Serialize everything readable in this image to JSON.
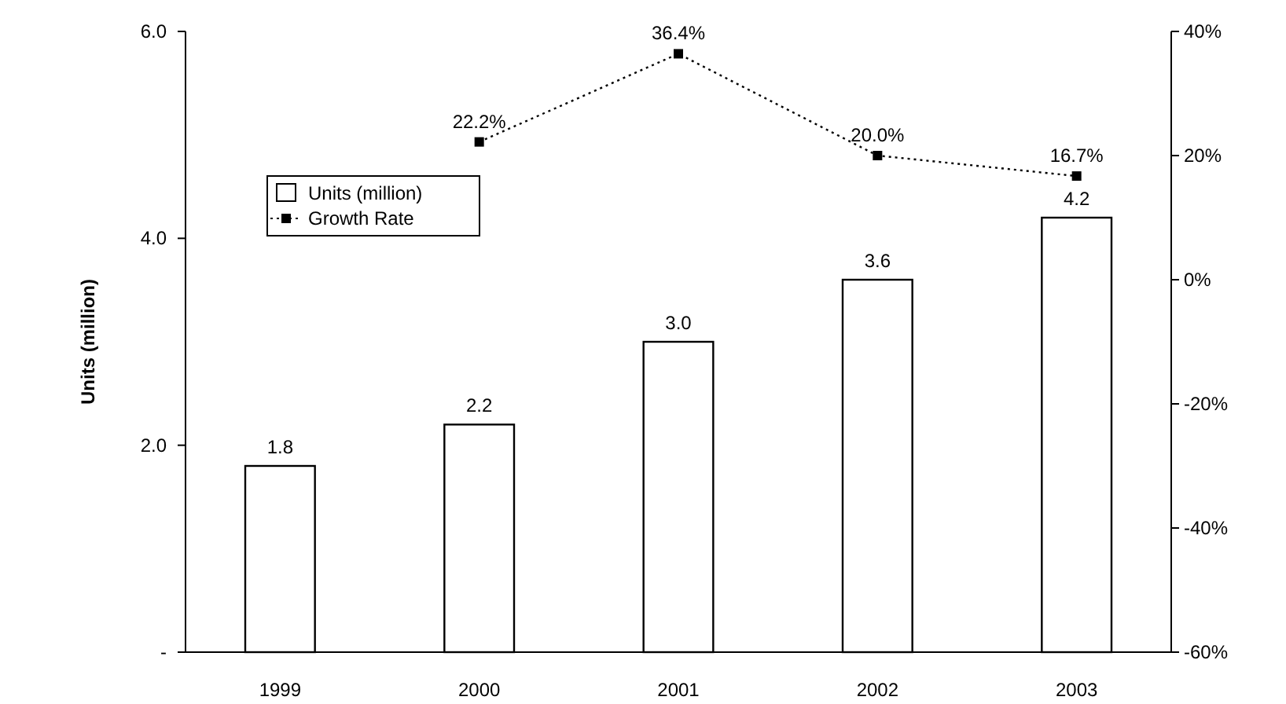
{
  "chart_data": {
    "type": "bar",
    "ylabel": "Units (million)",
    "categories": [
      "1999",
      "2000",
      "2001",
      "2002",
      "2003"
    ],
    "ylim": [
      0,
      6
    ],
    "yticks": [
      {
        "value": 0,
        "label": "-"
      },
      {
        "value": 2,
        "label": "2.0"
      },
      {
        "value": 4,
        "label": "4.0"
      },
      {
        "value": 6,
        "label": "6.0"
      }
    ],
    "y2lim": [
      -60,
      40
    ],
    "y2ticks": [
      {
        "value": -60,
        "label": "-60%"
      },
      {
        "value": -40,
        "label": "-40%"
      },
      {
        "value": -20,
        "label": "-20%"
      },
      {
        "value": 0,
        "label": "0%"
      },
      {
        "value": 20,
        "label": "20%"
      },
      {
        "value": 40,
        "label": "40%"
      }
    ],
    "series": [
      {
        "name": "Units (million)",
        "color": "#ffffff",
        "values": [
          1.8,
          2.2,
          3.0,
          3.6,
          4.2
        ],
        "value_labels": [
          "1.8",
          "2.2",
          "3.0",
          "3.6",
          "4.2"
        ]
      },
      {
        "name": "Growth Rate",
        "type": "line",
        "axis": "y2",
        "color": "#000000",
        "marker": "square",
        "line_style": "dotted",
        "values": [
          null,
          22.2,
          36.4,
          20.0,
          16.7
        ],
        "value_labels": [
          null,
          "22.2%",
          "36.4%",
          "20.0%",
          "16.7%"
        ]
      }
    ],
    "legend": "top left",
    "grid": false
  }
}
